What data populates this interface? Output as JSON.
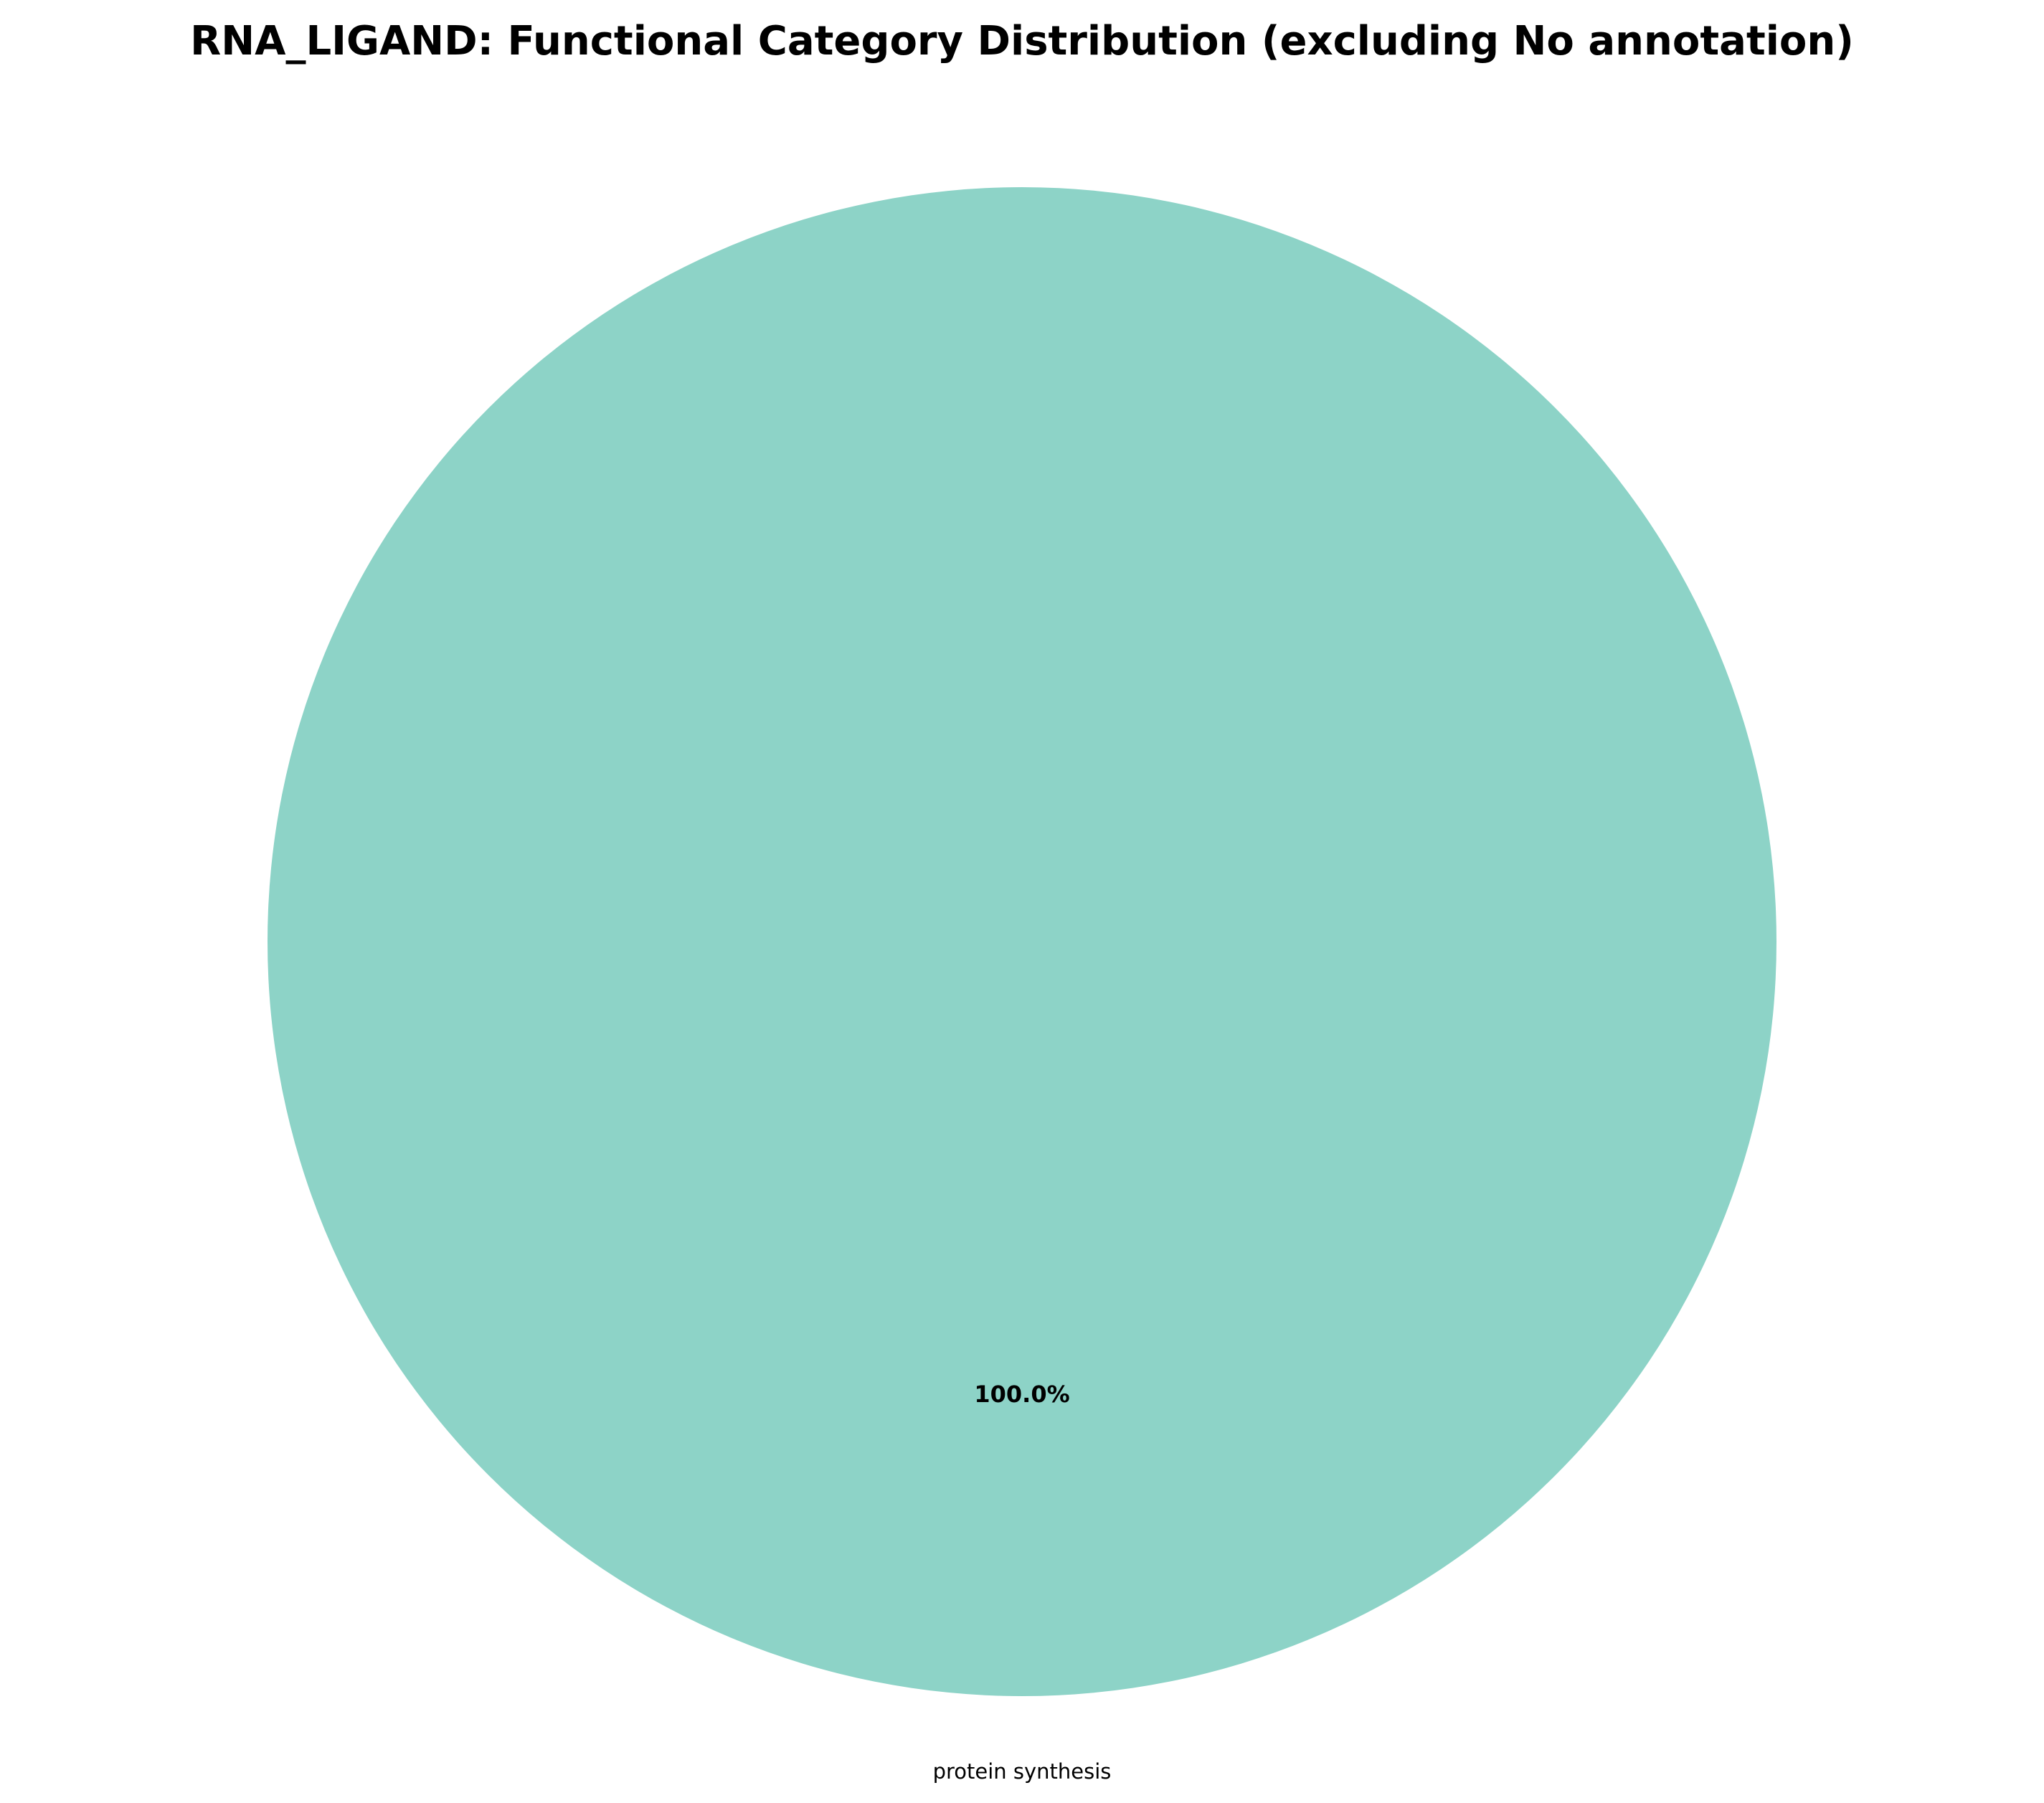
{
  "chart_data": {
    "type": "pie",
    "title": "RNA_LIGAND: Functional Category Distribution (excluding No annotation)",
    "slices": [
      {
        "label": "protein synthesis",
        "value": 100.0,
        "percent_label": "100.0%",
        "color": "#8dd3c7"
      }
    ],
    "legend": "none",
    "start_angle_deg": 90,
    "direction": "counterclockwise"
  }
}
